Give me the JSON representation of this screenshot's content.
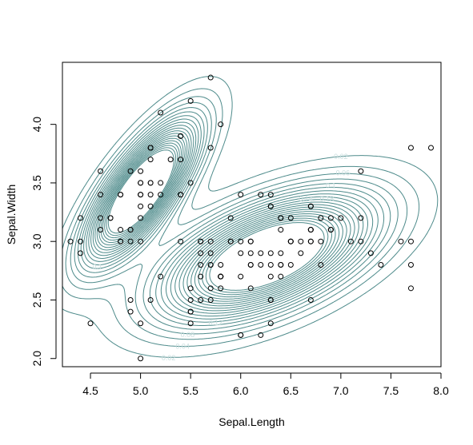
{
  "chart_data": {
    "type": "scatter",
    "title": "",
    "xlabel": "Sepal.Length",
    "ylabel": "Sepal.Width",
    "xlim": [
      4.22,
      8.0
    ],
    "ylim": [
      1.93,
      4.53
    ],
    "xticks": [
      "4.5",
      "5.0",
      "5.5",
      "6.0",
      "6.5",
      "7.0",
      "7.5",
      "8.0"
    ],
    "yticks": [
      "2.0",
      "2.5",
      "3.0",
      "3.5",
      "4.0"
    ],
    "grid": false,
    "legend": "none",
    "colors": {
      "contour": "#4e8b8b",
      "contour_label": "#c9dede",
      "points": "#000000"
    },
    "points": [
      [
        5.1,
        3.5
      ],
      [
        4.9,
        3.0
      ],
      [
        4.7,
        3.2
      ],
      [
        4.6,
        3.1
      ],
      [
        5.0,
        3.6
      ],
      [
        5.4,
        3.9
      ],
      [
        4.6,
        3.4
      ],
      [
        5.0,
        3.4
      ],
      [
        4.4,
        2.9
      ],
      [
        4.9,
        3.1
      ],
      [
        5.4,
        3.7
      ],
      [
        4.8,
        3.4
      ],
      [
        4.8,
        3.0
      ],
      [
        4.3,
        3.0
      ],
      [
        5.8,
        4.0
      ],
      [
        5.7,
        4.4
      ],
      [
        5.4,
        3.9
      ],
      [
        5.1,
        3.5
      ],
      [
        5.7,
        3.8
      ],
      [
        5.1,
        3.8
      ],
      [
        5.4,
        3.4
      ],
      [
        5.1,
        3.7
      ],
      [
        4.6,
        3.6
      ],
      [
        5.1,
        3.3
      ],
      [
        4.8,
        3.4
      ],
      [
        5.0,
        3.0
      ],
      [
        5.0,
        3.4
      ],
      [
        5.2,
        3.5
      ],
      [
        5.2,
        3.4
      ],
      [
        4.7,
        3.2
      ],
      [
        4.8,
        3.1
      ],
      [
        5.4,
        3.4
      ],
      [
        5.2,
        4.1
      ],
      [
        5.5,
        4.2
      ],
      [
        4.9,
        3.1
      ],
      [
        5.0,
        3.2
      ],
      [
        5.5,
        3.5
      ],
      [
        4.9,
        3.6
      ],
      [
        4.4,
        3.0
      ],
      [
        5.1,
        3.4
      ],
      [
        5.0,
        3.5
      ],
      [
        4.5,
        2.3
      ],
      [
        4.4,
        3.2
      ],
      [
        5.0,
        3.5
      ],
      [
        5.1,
        3.8
      ],
      [
        4.8,
        3.0
      ],
      [
        5.1,
        3.8
      ],
      [
        4.6,
        3.2
      ],
      [
        5.3,
        3.7
      ],
      [
        5.0,
        3.3
      ],
      [
        7.0,
        3.2
      ],
      [
        6.4,
        3.2
      ],
      [
        6.9,
        3.1
      ],
      [
        5.5,
        2.3
      ],
      [
        6.5,
        2.8
      ],
      [
        5.7,
        2.8
      ],
      [
        6.3,
        3.3
      ],
      [
        4.9,
        2.4
      ],
      [
        6.6,
        2.9
      ],
      [
        5.2,
        2.7
      ],
      [
        5.0,
        2.0
      ],
      [
        5.9,
        3.0
      ],
      [
        6.0,
        2.2
      ],
      [
        6.1,
        2.9
      ],
      [
        5.6,
        2.9
      ],
      [
        6.7,
        3.1
      ],
      [
        5.6,
        3.0
      ],
      [
        5.8,
        2.7
      ],
      [
        6.2,
        2.2
      ],
      [
        5.6,
        2.5
      ],
      [
        5.9,
        3.2
      ],
      [
        6.1,
        2.8
      ],
      [
        6.3,
        2.5
      ],
      [
        6.1,
        2.8
      ],
      [
        6.4,
        2.9
      ],
      [
        6.6,
        3.0
      ],
      [
        6.8,
        2.8
      ],
      [
        6.7,
        3.0
      ],
      [
        6.0,
        2.9
      ],
      [
        5.7,
        2.6
      ],
      [
        5.5,
        2.4
      ],
      [
        5.5,
        2.4
      ],
      [
        5.8,
        2.7
      ],
      [
        6.0,
        2.7
      ],
      [
        5.4,
        3.0
      ],
      [
        6.0,
        3.4
      ],
      [
        6.7,
        3.1
      ],
      [
        6.3,
        2.3
      ],
      [
        5.6,
        3.0
      ],
      [
        5.5,
        2.5
      ],
      [
        5.5,
        2.6
      ],
      [
        6.1,
        3.0
      ],
      [
        5.8,
        2.6
      ],
      [
        5.0,
        2.3
      ],
      [
        5.6,
        2.7
      ],
      [
        5.7,
        3.0
      ],
      [
        5.7,
        2.9
      ],
      [
        6.2,
        2.9
      ],
      [
        5.1,
        2.5
      ],
      [
        5.7,
        2.8
      ],
      [
        6.3,
        3.3
      ],
      [
        5.8,
        2.7
      ],
      [
        7.1,
        3.0
      ],
      [
        6.3,
        2.9
      ],
      [
        6.5,
        3.0
      ],
      [
        7.6,
        3.0
      ],
      [
        4.9,
        2.5
      ],
      [
        7.3,
        2.9
      ],
      [
        6.7,
        2.5
      ],
      [
        7.2,
        3.6
      ],
      [
        6.5,
        3.2
      ],
      [
        6.4,
        2.7
      ],
      [
        6.8,
        3.0
      ],
      [
        5.7,
        2.5
      ],
      [
        5.8,
        2.8
      ],
      [
        6.4,
        3.2
      ],
      [
        6.5,
        3.0
      ],
      [
        7.7,
        3.8
      ],
      [
        7.7,
        2.6
      ],
      [
        6.0,
        2.2
      ],
      [
        6.9,
        3.2
      ],
      [
        5.6,
        2.8
      ],
      [
        7.7,
        2.8
      ],
      [
        6.3,
        2.7
      ],
      [
        6.7,
        3.3
      ],
      [
        7.2,
        3.2
      ],
      [
        6.2,
        2.8
      ],
      [
        6.1,
        3.0
      ],
      [
        6.4,
        2.8
      ],
      [
        7.2,
        3.0
      ],
      [
        7.4,
        2.8
      ],
      [
        7.9,
        3.8
      ],
      [
        6.4,
        2.8
      ],
      [
        6.3,
        2.8
      ],
      [
        6.1,
        2.6
      ],
      [
        7.7,
        3.0
      ],
      [
        6.3,
        3.4
      ],
      [
        6.4,
        3.1
      ],
      [
        6.0,
        3.0
      ],
      [
        6.9,
        3.1
      ],
      [
        6.7,
        3.1
      ],
      [
        6.9,
        3.1
      ],
      [
        5.8,
        2.7
      ],
      [
        6.8,
        3.2
      ],
      [
        6.7,
        3.3
      ],
      [
        6.7,
        3.0
      ],
      [
        6.3,
        2.5
      ],
      [
        6.5,
        3.0
      ],
      [
        6.2,
        3.4
      ],
      [
        5.9,
        3.0
      ]
    ],
    "contour_levels": [
      "0.02",
      "0.04",
      "0.06",
      "0.08",
      "0.1",
      "0.12",
      "0.14",
      "0.16",
      "0.18",
      "0.2",
      "0.22",
      "0.24",
      "0.26",
      "0.28",
      "0.3",
      "0.32",
      "0.34",
      "0.36",
      "0.38",
      "0.4"
    ]
  }
}
